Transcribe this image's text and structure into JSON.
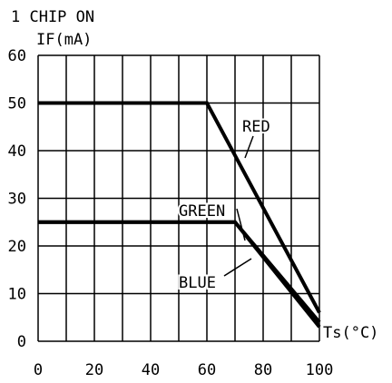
{
  "header": {
    "title": "1 CHIP ON",
    "ylabel": "IF(mA)",
    "xlabel": "Ts(°C)"
  },
  "chart_data": {
    "type": "line",
    "title": "1 CHIP ON",
    "ylabel": "IF(mA)",
    "xlabel": "Ts(°C)",
    "xlim": [
      0,
      100
    ],
    "ylim": [
      0,
      60
    ],
    "x_ticks": [
      0,
      20,
      40,
      60,
      80,
      100
    ],
    "y_ticks": [
      0,
      10,
      20,
      30,
      40,
      50,
      60
    ],
    "grid": true,
    "grid_x_step": 10,
    "grid_y_step": 10,
    "series": [
      {
        "name": "RED",
        "x": [
          0,
          60,
          100
        ],
        "y": [
          50,
          50,
          6
        ]
      },
      {
        "name": "GREEN",
        "x": [
          0,
          70,
          100
        ],
        "y": [
          25,
          25,
          3
        ]
      },
      {
        "name": "BLUE",
        "x": [
          0,
          70,
          100
        ],
        "y": [
          25,
          25,
          4
        ]
      }
    ],
    "line_color": "#000000",
    "grid_color": "#000000"
  }
}
